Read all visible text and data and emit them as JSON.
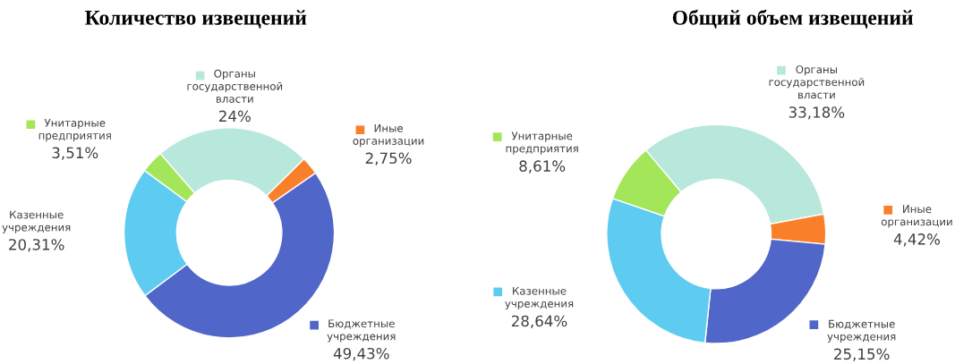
{
  "chart_data": [
    {
      "type": "donut",
      "title": "Количество извещений",
      "legend": "top left",
      "categories": [
        "Органы\nгосударственной\nвласти",
        "Иные\nорганизации",
        "Бюджетные\nучреждения",
        "Казенные\nучреждения",
        "Унитарные\nпредприятия"
      ],
      "values": [
        24,
        2.75,
        49.43,
        20.31,
        3.51
      ],
      "value_labels": [
        "24%",
        "2,75%",
        "49,43%",
        "20,31%",
        "3,51%"
      ],
      "colors": [
        "#b8e8dc",
        "#f97f2a",
        "#5066c8",
        "#5ecbf0",
        "#a4e65a"
      ]
    },
    {
      "type": "donut",
      "title": "Общий объем извещений",
      "legend": "top right",
      "categories": [
        "Органы\nгосударственной\nвласти",
        "Иные\nорганизации",
        "Бюджетные\nучреждения",
        "Казенные\nучреждения",
        "Унитарные\nпредприятия"
      ],
      "values": [
        33.18,
        4.42,
        25.15,
        28.64,
        8.61
      ],
      "value_labels": [
        "33,18%",
        "4,42%",
        "25,15%",
        "28,64%",
        "8,61%"
      ],
      "colors": [
        "#b8e8dc",
        "#f97f2a",
        "#5066c8",
        "#5ecbf0",
        "#a4e65a"
      ]
    }
  ]
}
